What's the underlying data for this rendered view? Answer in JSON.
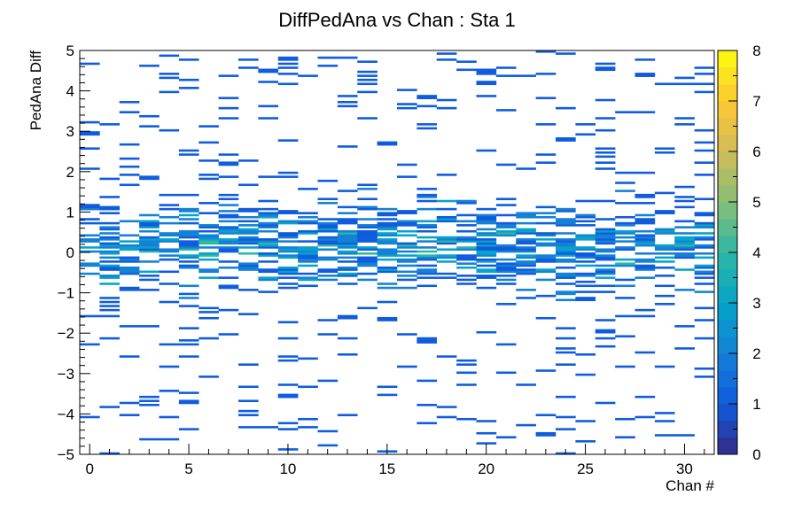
{
  "chart_data": {
    "type": "heatmap",
    "title": "DiffPedAna vs Chan : Sta 1",
    "xlabel": "Chan #",
    "ylabel": "PedAna Diff",
    "xlim": [
      -0.5,
      31.5
    ],
    "ylim": [
      -5,
      5
    ],
    "x_ticks": [
      0,
      5,
      10,
      15,
      20,
      25,
      30
    ],
    "y_ticks": [
      -5,
      -4,
      -3,
      -2,
      -1,
      0,
      1,
      2,
      3,
      4,
      5
    ],
    "x_tick_labels": [
      "0",
      "5",
      "10",
      "15",
      "20",
      "25",
      "30"
    ],
    "y_tick_labels": [
      "−5",
      "−4",
      "−3",
      "−2",
      "−1",
      "0",
      "1",
      "2",
      "3",
      "4",
      "5"
    ],
    "colorbar": {
      "zlim": [
        0,
        8
      ],
      "ticks": [
        0,
        1,
        2,
        3,
        4,
        5,
        6,
        7,
        8
      ],
      "tick_labels": [
        "0",
        "1",
        "2",
        "3",
        "4",
        "5",
        "6",
        "7",
        "8"
      ],
      "palette": [
        "#352a87",
        "#0f5cdd",
        "#1481d6",
        "#06a4ca",
        "#2eb7a4",
        "#87bf77",
        "#d1bb59",
        "#fec832",
        "#f9fb0e"
      ]
    },
    "grid": false,
    "x_bins": 32,
    "y_bins": 200
  }
}
